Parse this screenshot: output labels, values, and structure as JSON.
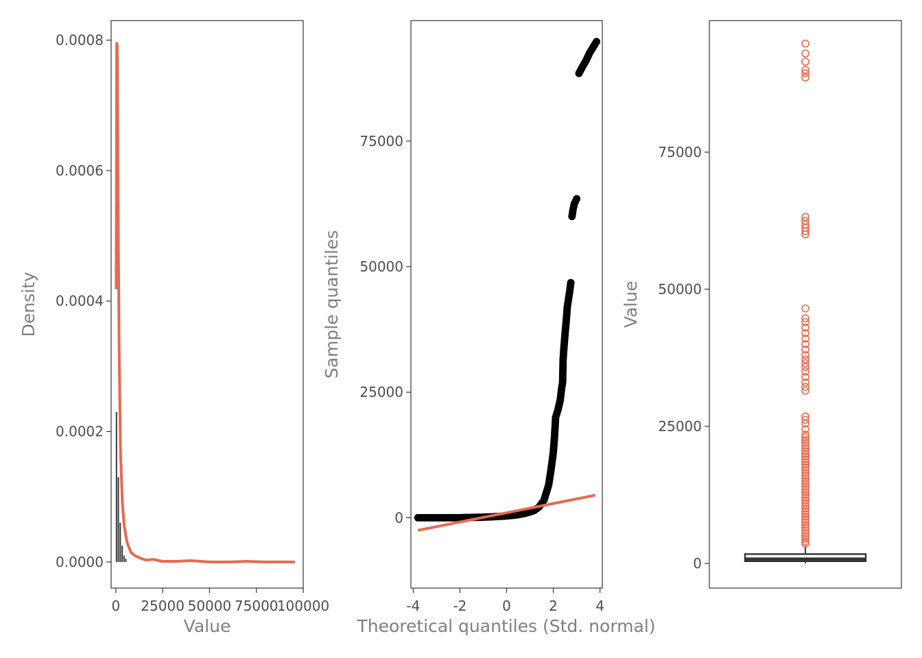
{
  "colors": {
    "accent": "#e8694f",
    "dark": "#333333",
    "points": "#000000"
  },
  "chart_data": [
    {
      "type": "area",
      "title": "",
      "xlabel": "Value",
      "ylabel": "Density",
      "xlim": [
        -2500,
        100000
      ],
      "ylim": [
        -4e-05,
        0.00083
      ],
      "x_ticks": [
        0,
        25000,
        50000,
        75000,
        100000
      ],
      "x_tick_labels": [
        "0",
        "25000",
        "50000",
        "75000",
        "100000"
      ],
      "y_ticks": [
        0,
        0.0002,
        0.0004,
        0.0006,
        0.0008
      ],
      "y_tick_labels": [
        "0.0000",
        "0.0002",
        "0.0004",
        "0.0006",
        "0.0008"
      ],
      "grid": false,
      "series": [
        {
          "kind": "histogram",
          "x": [
            0,
            1000,
            2000,
            3000,
            4000,
            5000
          ],
          "values": [
            0.00023,
            0.00013,
            6e-05,
            2.5e-05,
            1e-05,
            5e-06
          ]
        },
        {
          "kind": "density-line",
          "x": [
            200,
            500,
            800,
            1200,
            1800,
            2500,
            3500,
            4500,
            6000,
            8000,
            10000,
            13000,
            16000,
            20000,
            25000,
            32000,
            40000,
            50000,
            60000,
            70000,
            80000,
            90000,
            95000
          ],
          "values": [
            0.00042,
            0.000795,
            0.00079,
            0.00055,
            0.00032,
            0.00017,
            9e-05,
            5.5e-05,
            3e-05,
            1.5e-05,
            1e-05,
            6e-06,
            3e-06,
            4e-06,
            1e-06,
            1e-06,
            2e-06,
            0,
            0,
            1e-06,
            0,
            0,
            0
          ]
        }
      ]
    },
    {
      "type": "scatter",
      "title": "",
      "xlabel": "Theoretical quantiles (Std. normal)",
      "ylabel": "Sample quantiles",
      "xlim": [
        -4.1,
        4.1
      ],
      "ylim": [
        -14000,
        99000
      ],
      "x_ticks": [
        -4,
        -2,
        0,
        2,
        4
      ],
      "x_tick_labels": [
        "-4",
        "-2",
        "0",
        "2",
        "4"
      ],
      "y_ticks": [
        0,
        25000,
        50000,
        75000
      ],
      "y_tick_labels": [
        "0",
        "25000",
        "50000",
        "75000"
      ],
      "grid": false,
      "points": [
        [
          -3.8,
          0
        ],
        [
          -3.5,
          0
        ],
        [
          -3.2,
          0
        ],
        [
          -3.0,
          0
        ],
        [
          -2.8,
          0
        ],
        [
          -2.6,
          0
        ],
        [
          -2.4,
          0
        ],
        [
          -2.2,
          0
        ],
        [
          -2.0,
          0
        ],
        [
          -1.8,
          50
        ],
        [
          -1.6,
          60
        ],
        [
          -1.4,
          80
        ],
        [
          -1.2,
          100
        ],
        [
          -1.0,
          130
        ],
        [
          -0.8,
          160
        ],
        [
          -0.6,
          200
        ],
        [
          -0.4,
          250
        ],
        [
          -0.2,
          300
        ],
        [
          0.0,
          370
        ],
        [
          0.2,
          450
        ],
        [
          0.4,
          550
        ],
        [
          0.6,
          700
        ],
        [
          0.8,
          900
        ],
        [
          1.0,
          1150
        ],
        [
          1.2,
          1500
        ],
        [
          1.4,
          2200
        ],
        [
          1.6,
          3500
        ],
        [
          1.8,
          6500
        ],
        [
          1.9,
          9500
        ],
        [
          2.0,
          13000
        ],
        [
          2.05,
          16000
        ],
        [
          2.1,
          20000
        ],
        [
          2.2,
          21500
        ],
        [
          2.3,
          23500
        ],
        [
          2.35,
          25500
        ],
        [
          2.4,
          27000
        ],
        [
          2.42,
          31500
        ],
        [
          2.45,
          33500
        ],
        [
          2.5,
          36500
        ],
        [
          2.55,
          39000
        ],
        [
          2.6,
          42000
        ],
        [
          2.65,
          43500
        ],
        [
          2.7,
          45000
        ],
        [
          2.75,
          46800
        ],
        [
          2.8,
          60000
        ],
        [
          2.85,
          61500
        ],
        [
          2.9,
          62500
        ],
        [
          3.0,
          63500
        ],
        [
          3.1,
          88500
        ],
        [
          3.25,
          89800
        ],
        [
          3.4,
          91000
        ],
        [
          3.55,
          92500
        ],
        [
          3.85,
          94800
        ]
      ],
      "reference_line": {
        "x": [
          -3.8,
          3.8
        ],
        "y": [
          -2500,
          4500
        ]
      }
    },
    {
      "type": "box",
      "title": "",
      "xlabel": "",
      "ylabel": "Value",
      "ylim": [
        -4500,
        99000
      ],
      "y_ticks": [
        0,
        25000,
        50000,
        75000
      ],
      "y_tick_labels": [
        "0",
        "25000",
        "50000",
        "75000"
      ],
      "grid": false,
      "box": {
        "q1": 400,
        "median": 800,
        "q3": 1700,
        "whisker_low": 0,
        "whisker_high": 3200
      },
      "outliers": [
        3600,
        4000,
        4500,
        5000,
        5500,
        6000,
        6500,
        7000,
        7500,
        8000,
        8500,
        9000,
        9500,
        10000,
        10500,
        11000,
        11500,
        12000,
        12500,
        13000,
        13500,
        14000,
        14500,
        15000,
        15500,
        16000,
        16500,
        17000,
        17500,
        18000,
        18500,
        19000,
        19500,
        20000,
        20500,
        21000,
        21500,
        22000,
        22500,
        23000,
        23500,
        24500,
        25500,
        26200,
        26800,
        31500,
        32200,
        33000,
        34000,
        35000,
        35800,
        36500,
        37200,
        38000,
        39000,
        40000,
        41000,
        42000,
        43000,
        44000,
        44700,
        46500,
        60000,
        60600,
        61200,
        61800,
        62500,
        63200,
        88600,
        89400,
        90000,
        91500,
        93000,
        94800
      ]
    }
  ]
}
